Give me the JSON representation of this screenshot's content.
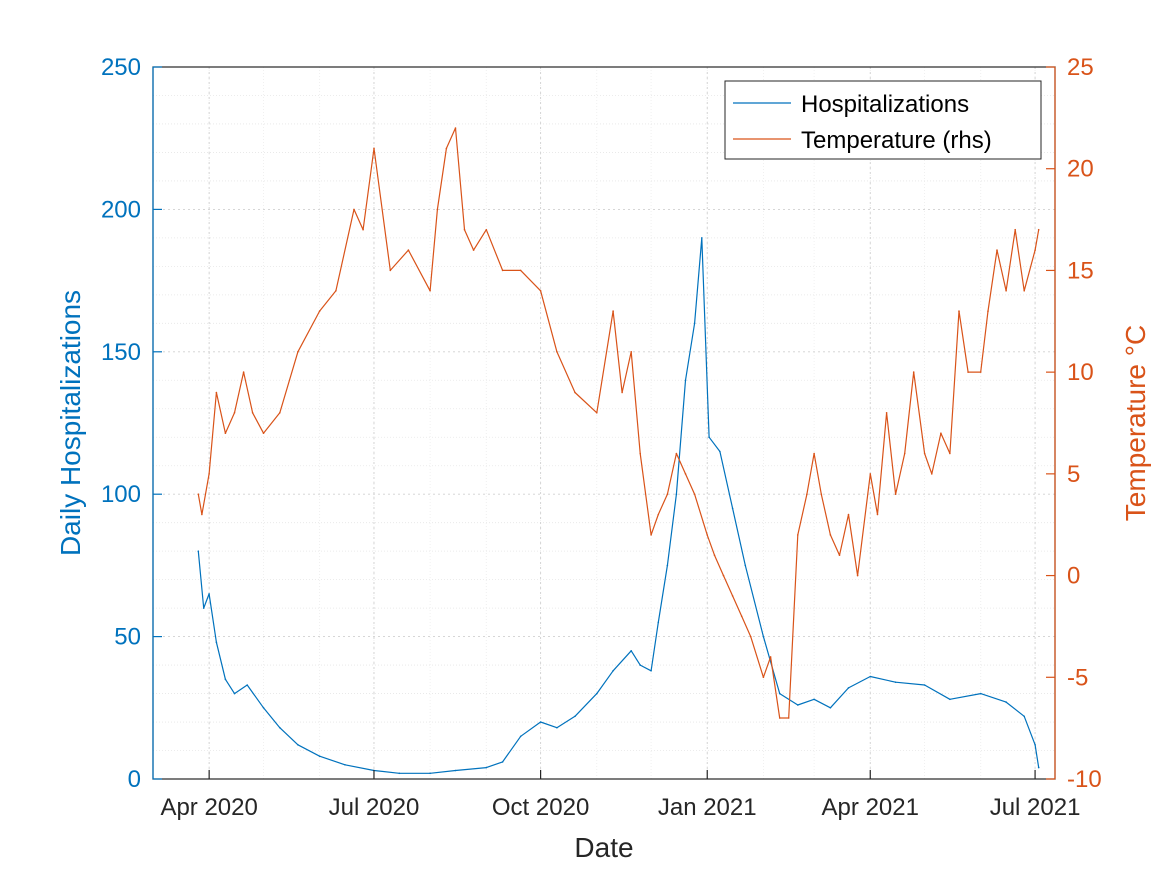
{
  "chart_data": {
    "type": "line",
    "title": "",
    "xlabel": "Date",
    "ylabel_left": "Daily Hospitalizations",
    "ylabel_right": "Temperature °C",
    "xlim": [
      "2020-03-01",
      "2021-07-12"
    ],
    "ylim_left": [
      0,
      250
    ],
    "ylim_right": [
      -10,
      25
    ],
    "grid": true,
    "minor_grid": true,
    "legend_placement": "top-right",
    "x_ticks": [
      {
        "date": "2020-04-01",
        "label": "Apr 2020"
      },
      {
        "date": "2020-07-01",
        "label": "Jul 2020"
      },
      {
        "date": "2020-10-01",
        "label": "Oct 2020"
      },
      {
        "date": "2021-01-01",
        "label": "Jan 2021"
      },
      {
        "date": "2021-04-01",
        "label": "Apr 2021"
      },
      {
        "date": "2021-07-01",
        "label": "Jul 2021"
      }
    ],
    "y_ticks_left": [
      0,
      50,
      100,
      150,
      200,
      250
    ],
    "y_ticks_right": [
      -10,
      -5,
      0,
      5,
      10,
      15,
      20,
      25
    ],
    "colors": {
      "left": "#0072BD",
      "right": "#D95319"
    },
    "series": [
      {
        "name": "Hospitalizations",
        "axis": "left",
        "x": [
          "2020-03-26",
          "2020-03-29",
          "2020-04-01",
          "2020-04-05",
          "2020-04-10",
          "2020-04-15",
          "2020-04-22",
          "2020-05-01",
          "2020-05-10",
          "2020-05-20",
          "2020-06-01",
          "2020-06-15",
          "2020-07-01",
          "2020-07-15",
          "2020-08-01",
          "2020-08-15",
          "2020-09-01",
          "2020-09-10",
          "2020-09-20",
          "2020-10-01",
          "2020-10-10",
          "2020-10-20",
          "2020-11-01",
          "2020-11-10",
          "2020-11-20",
          "2020-11-25",
          "2020-12-01",
          "2020-12-05",
          "2020-12-10",
          "2020-12-15",
          "2020-12-20",
          "2020-12-25",
          "2020-12-29",
          "2021-01-02",
          "2021-01-08",
          "2021-01-15",
          "2021-01-22",
          "2021-02-01",
          "2021-02-10",
          "2021-02-20",
          "2021-03-01",
          "2021-03-10",
          "2021-03-20",
          "2021-04-01",
          "2021-04-15",
          "2021-05-01",
          "2021-05-15",
          "2021-06-01",
          "2021-06-15",
          "2021-06-25",
          "2021-07-01",
          "2021-07-03"
        ],
        "y": [
          80,
          60,
          65,
          48,
          35,
          30,
          33,
          25,
          18,
          12,
          8,
          5,
          3,
          2,
          2,
          3,
          4,
          6,
          15,
          20,
          18,
          22,
          30,
          38,
          45,
          40,
          38,
          55,
          75,
          100,
          140,
          160,
          190,
          120,
          115,
          95,
          75,
          50,
          30,
          26,
          28,
          25,
          32,
          36,
          34,
          33,
          28,
          30,
          27,
          22,
          12,
          4
        ]
      },
      {
        "name": "Temperature (rhs)",
        "axis": "right",
        "x": [
          "2020-03-26",
          "2020-03-28",
          "2020-04-01",
          "2020-04-05",
          "2020-04-10",
          "2020-04-15",
          "2020-04-20",
          "2020-04-25",
          "2020-05-01",
          "2020-05-10",
          "2020-05-20",
          "2020-06-01",
          "2020-06-10",
          "2020-06-20",
          "2020-06-25",
          "2020-07-01",
          "2020-07-10",
          "2020-07-20",
          "2020-08-01",
          "2020-08-05",
          "2020-08-10",
          "2020-08-15",
          "2020-08-20",
          "2020-08-25",
          "2020-09-01",
          "2020-09-10",
          "2020-09-20",
          "2020-10-01",
          "2020-10-10",
          "2020-10-20",
          "2020-11-01",
          "2020-11-10",
          "2020-11-15",
          "2020-11-20",
          "2020-11-25",
          "2020-12-01",
          "2020-12-05",
          "2020-12-10",
          "2020-12-15",
          "2020-12-20",
          "2020-12-25",
          "2021-01-01",
          "2021-01-05",
          "2021-01-10",
          "2021-01-15",
          "2021-01-20",
          "2021-01-25",
          "2021-02-01",
          "2021-02-05",
          "2021-02-10",
          "2021-02-15",
          "2021-02-20",
          "2021-02-25",
          "2021-03-01",
          "2021-03-05",
          "2021-03-10",
          "2021-03-15",
          "2021-03-20",
          "2021-03-25",
          "2021-04-01",
          "2021-04-05",
          "2021-04-10",
          "2021-04-15",
          "2021-04-20",
          "2021-04-25",
          "2021-05-01",
          "2021-05-05",
          "2021-05-10",
          "2021-05-15",
          "2021-05-20",
          "2021-05-25",
          "2021-06-01",
          "2021-06-05",
          "2021-06-10",
          "2021-06-15",
          "2021-06-20",
          "2021-06-25",
          "2021-07-01",
          "2021-07-03"
        ],
        "y": [
          4,
          3,
          5,
          9,
          7,
          8,
          10,
          8,
          7,
          8,
          11,
          13,
          14,
          18,
          17,
          21,
          15,
          16,
          14,
          18,
          21,
          22,
          17,
          16,
          17,
          15,
          15,
          14,
          11,
          9,
          8,
          13,
          9,
          11,
          6,
          2,
          3,
          4,
          6,
          5,
          4,
          2,
          1,
          0,
          -1,
          -2,
          -3,
          -5,
          -4,
          -7,
          -7,
          2,
          4,
          6,
          4,
          2,
          1,
          3,
          0,
          5,
          3,
          8,
          4,
          6,
          10,
          6,
          5,
          7,
          6,
          13,
          10,
          10,
          13,
          16,
          14,
          17,
          14,
          16,
          17
        ]
      }
    ]
  }
}
